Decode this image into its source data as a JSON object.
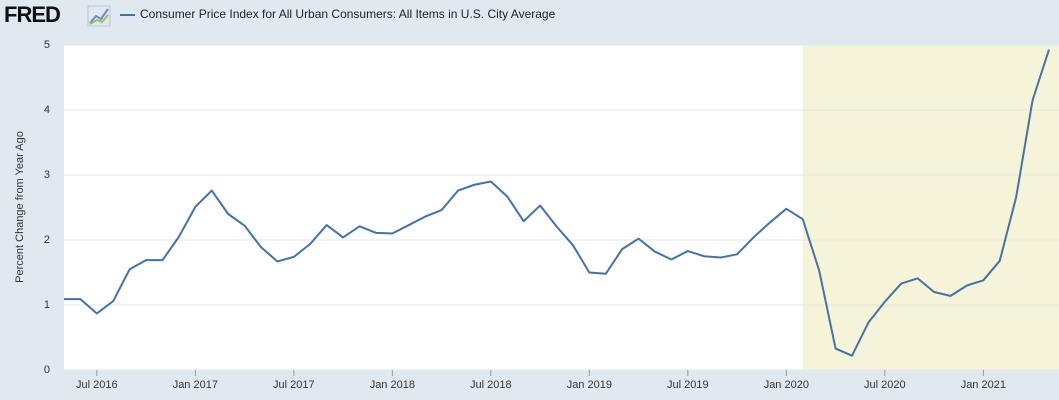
{
  "logo": "FRED",
  "chart_data": {
    "type": "line",
    "y_label": "Percent Change from Year Ago",
    "x": [
      "2016-05",
      "2016-06",
      "2016-07",
      "2016-08",
      "2016-09",
      "2016-10",
      "2016-11",
      "2016-12",
      "2017-01",
      "2017-02",
      "2017-03",
      "2017-04",
      "2017-05",
      "2017-06",
      "2017-07",
      "2017-08",
      "2017-09",
      "2017-10",
      "2017-11",
      "2017-12",
      "2018-01",
      "2018-02",
      "2018-03",
      "2018-04",
      "2018-05",
      "2018-06",
      "2018-07",
      "2018-08",
      "2018-09",
      "2018-10",
      "2018-11",
      "2018-12",
      "2019-01",
      "2019-02",
      "2019-03",
      "2019-04",
      "2019-05",
      "2019-06",
      "2019-07",
      "2019-08",
      "2019-09",
      "2019-10",
      "2019-11",
      "2019-12",
      "2020-01",
      "2020-02",
      "2020-03",
      "2020-04",
      "2020-05",
      "2020-06",
      "2020-07",
      "2020-08",
      "2020-09",
      "2020-10",
      "2020-11",
      "2020-12",
      "2021-01",
      "2021-02",
      "2021-03",
      "2021-04",
      "2021-05"
    ],
    "series": [
      {
        "name": "Consumer Price Index for All Urban Consumers: All Items in U.S. City Average",
        "color": "#4572a7",
        "values": [
          1.09,
          1.09,
          0.87,
          1.06,
          1.55,
          1.69,
          1.69,
          2.05,
          2.51,
          2.76,
          2.4,
          2.22,
          1.89,
          1.67,
          1.74,
          1.94,
          2.23,
          2.04,
          2.21,
          2.11,
          2.1,
          2.23,
          2.36,
          2.46,
          2.76,
          2.85,
          2.9,
          2.67,
          2.29,
          2.53,
          2.21,
          1.92,
          1.5,
          1.48,
          1.86,
          2.02,
          1.82,
          1.7,
          1.83,
          1.75,
          1.73,
          1.78,
          2.04,
          2.27,
          2.48,
          2.32,
          1.53,
          0.33,
          0.22,
          0.73,
          1.05,
          1.33,
          1.41,
          1.2,
          1.14,
          1.3,
          1.38,
          1.68,
          2.66,
          4.15,
          4.93
        ]
      }
    ],
    "xlim": [
      "2016-05",
      "2021-05"
    ],
    "xticks": [
      {
        "value": "2016-07",
        "label": "Jul 2016"
      },
      {
        "value": "2017-01",
        "label": "Jan 2017"
      },
      {
        "value": "2017-07",
        "label": "Jul 2017"
      },
      {
        "value": "2018-01",
        "label": "Jan 2018"
      },
      {
        "value": "2018-07",
        "label": "Jul 2018"
      },
      {
        "value": "2019-01",
        "label": "Jan 2019"
      },
      {
        "value": "2019-07",
        "label": "Jul 2019"
      },
      {
        "value": "2020-01",
        "label": "Jan 2020"
      },
      {
        "value": "2020-07",
        "label": "Jul 2020"
      },
      {
        "value": "2021-01",
        "label": "Jan 2021"
      }
    ],
    "ylim": [
      0,
      5
    ],
    "yticks": [
      0,
      1,
      2,
      3,
      4,
      5
    ],
    "grid": true,
    "shade_from": "2020-02"
  }
}
